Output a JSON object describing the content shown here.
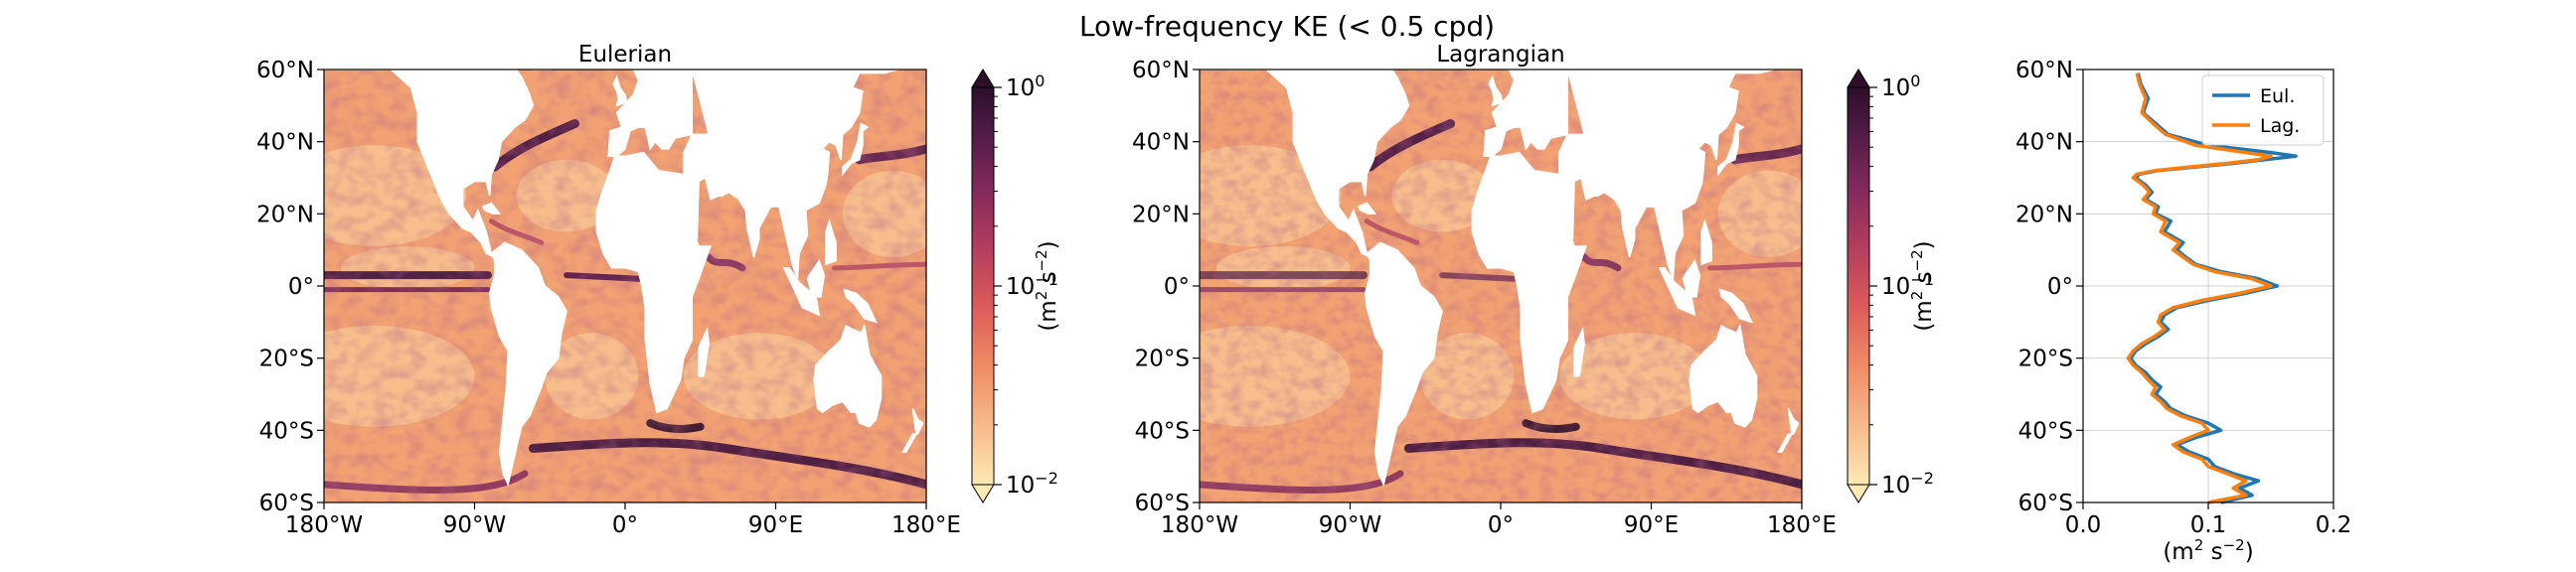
{
  "figure": {
    "title": "Low-frequency KE (< 0.5 cpd)"
  },
  "maps": [
    {
      "title": "Eulerian",
      "field_style": "eulerian",
      "x_ticks": [
        "180°W",
        "90°W",
        "0°",
        "90°E",
        "180°E"
      ],
      "y_ticks": [
        "60°N",
        "40°N",
        "20°N",
        "0°",
        "20°S",
        "40°S",
        "60°S"
      ]
    },
    {
      "title": "Lagrangian",
      "field_style": "lagrangian",
      "x_ticks": [
        "180°W",
        "90°W",
        "0°",
        "90°E",
        "180°E"
      ],
      "y_ticks": [
        "60°N",
        "40°N",
        "20°N",
        "0°",
        "20°S",
        "40°S",
        "60°S"
      ]
    }
  ],
  "colorbar": {
    "label_main": "(m",
    "label_sup1": "2",
    "label_mid": " s",
    "label_sup2": "−2",
    "label_end": ")",
    "scale": "log",
    "range": [
      0.01,
      1
    ],
    "extend": "both",
    "ticks": [
      {
        "base": "10",
        "exp": "0",
        "value": 1
      },
      {
        "base": "10",
        "exp": "−1",
        "value": 0.1
      },
      {
        "base": "10",
        "exp": "−2",
        "value": 0.01
      }
    ],
    "colormap": "matter_r",
    "colors": [
      "#fde9b4",
      "#f6b07c",
      "#ec7a5d",
      "#d24e5c",
      "#a6365f",
      "#75265a",
      "#47193f",
      "#2d0f2a"
    ]
  },
  "chart_data": {
    "type": "line",
    "xlabel_main": "(m",
    "xlabel_sup1": "2",
    "xlabel_mid": " s",
    "xlabel_sup2": "−2",
    "xlabel_end": ")",
    "xlim": [
      0.0,
      0.2
    ],
    "x_ticks": [
      "0.0",
      "0.1",
      "0.2"
    ],
    "ylim": [
      -60,
      60
    ],
    "y_ticks": [
      "60°N",
      "40°N",
      "20°N",
      "0°",
      "20°S",
      "40°S",
      "60°S"
    ],
    "grid": true,
    "legend_position": "upper-right",
    "series": [
      {
        "name": "Eul.",
        "color": "#1f77b4",
        "lat": [
          59,
          56,
          52,
          48,
          45,
          42,
          39,
          37,
          36,
          35,
          34,
          33,
          32,
          31,
          30,
          28,
          26,
          24,
          22,
          20,
          18,
          15,
          12,
          10,
          8,
          6,
          4,
          2,
          0,
          -2,
          -4,
          -6,
          -8,
          -10,
          -12,
          -14,
          -16,
          -18,
          -20,
          -22,
          -24,
          -26,
          -28,
          -30,
          -32,
          -34,
          -36,
          -38,
          -40,
          -42,
          -44,
          -46,
          -48,
          -50,
          -52,
          -54,
          -56,
          -58,
          -60
        ],
        "values": [
          0.044,
          0.046,
          0.052,
          0.048,
          0.058,
          0.068,
          0.1,
          0.15,
          0.17,
          0.145,
          0.12,
          0.09,
          0.06,
          0.045,
          0.042,
          0.05,
          0.055,
          0.05,
          0.06,
          0.058,
          0.07,
          0.065,
          0.08,
          0.075,
          0.082,
          0.09,
          0.11,
          0.14,
          0.155,
          0.13,
          0.1,
          0.075,
          0.065,
          0.062,
          0.068,
          0.06,
          0.05,
          0.042,
          0.038,
          0.042,
          0.05,
          0.055,
          0.062,
          0.058,
          0.065,
          0.07,
          0.082,
          0.1,
          0.11,
          0.09,
          0.075,
          0.085,
          0.1,
          0.105,
          0.12,
          0.14,
          0.125,
          0.135,
          0.11
        ]
      },
      {
        "name": "Lag.",
        "color": "#ff7f0e",
        "lat": [
          59,
          56,
          52,
          48,
          45,
          42,
          39,
          37,
          36,
          35,
          34,
          33,
          32,
          31,
          30,
          28,
          26,
          24,
          22,
          20,
          18,
          15,
          12,
          10,
          8,
          6,
          4,
          2,
          0,
          -2,
          -4,
          -6,
          -8,
          -10,
          -12,
          -14,
          -16,
          -18,
          -20,
          -22,
          -24,
          -26,
          -28,
          -30,
          -32,
          -34,
          -36,
          -38,
          -40,
          -42,
          -44,
          -46,
          -48,
          -50,
          -52,
          -54,
          -56,
          -58,
          -60
        ],
        "values": [
          0.043,
          0.045,
          0.05,
          0.047,
          0.056,
          0.066,
          0.09,
          0.13,
          0.15,
          0.14,
          0.115,
          0.085,
          0.058,
          0.043,
          0.04,
          0.048,
          0.053,
          0.048,
          0.058,
          0.056,
          0.066,
          0.062,
          0.077,
          0.072,
          0.08,
          0.088,
          0.105,
          0.135,
          0.15,
          0.125,
          0.095,
          0.072,
          0.062,
          0.06,
          0.065,
          0.057,
          0.047,
          0.04,
          0.036,
          0.04,
          0.047,
          0.052,
          0.058,
          0.055,
          0.062,
          0.067,
          0.078,
          0.095,
          0.1,
          0.085,
          0.072,
          0.08,
          0.095,
          0.1,
          0.115,
          0.13,
          0.12,
          0.13,
          0.1
        ]
      }
    ]
  }
}
